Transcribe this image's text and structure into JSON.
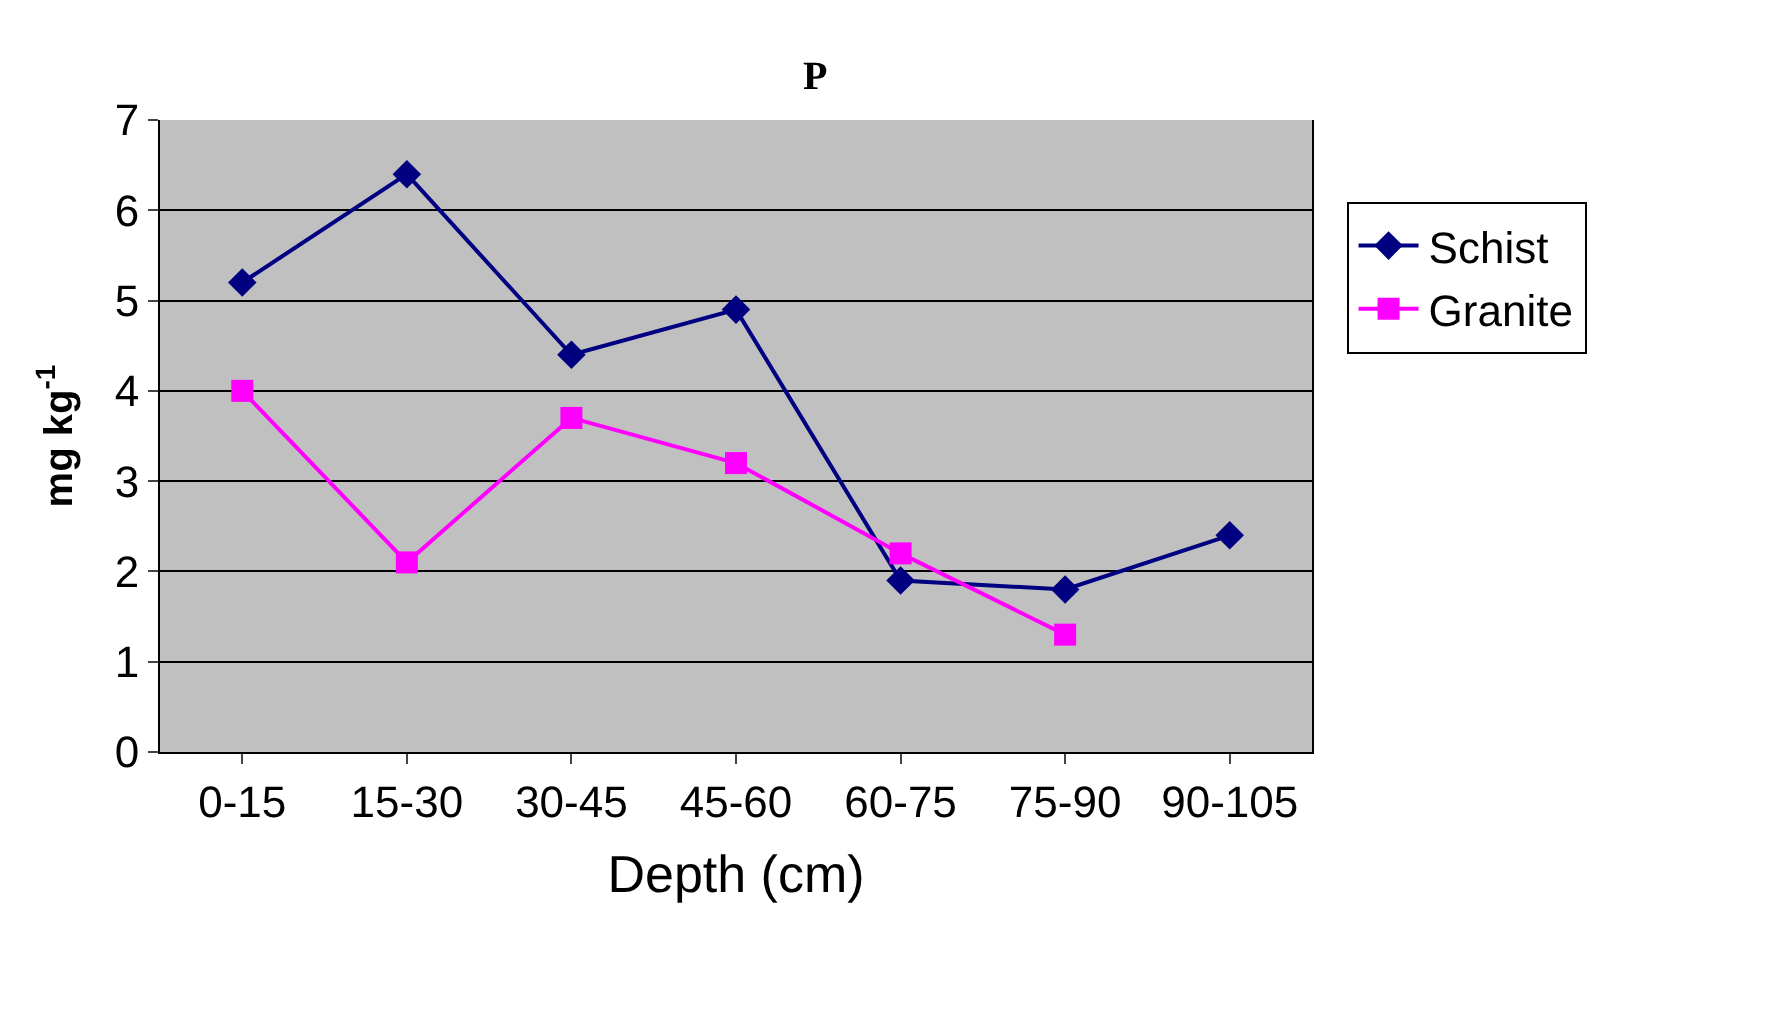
{
  "chart_data": {
    "type": "line",
    "title": "P",
    "xlabel": "Depth (cm)",
    "ylabel": "mg kg$^{-1}$",
    "categories": [
      "0-15",
      "15-30",
      "30-45",
      "45-60",
      "60-75",
      "75-90",
      "90-105"
    ],
    "series": [
      {
        "name": "Schist",
        "color": "#000080",
        "marker": "diamond",
        "values": [
          5.2,
          6.4,
          4.4,
          4.9,
          1.9,
          1.8,
          2.4
        ]
      },
      {
        "name": "Granite",
        "color": "#ff00ff",
        "marker": "square",
        "values": [
          4.0,
          2.1,
          3.7,
          3.2,
          2.2,
          1.3,
          null
        ]
      }
    ],
    "ylim": [
      0,
      7
    ],
    "yticks": [
      0,
      1,
      2,
      3,
      4,
      5,
      6,
      7
    ],
    "grid": "y",
    "legend": "right"
  }
}
